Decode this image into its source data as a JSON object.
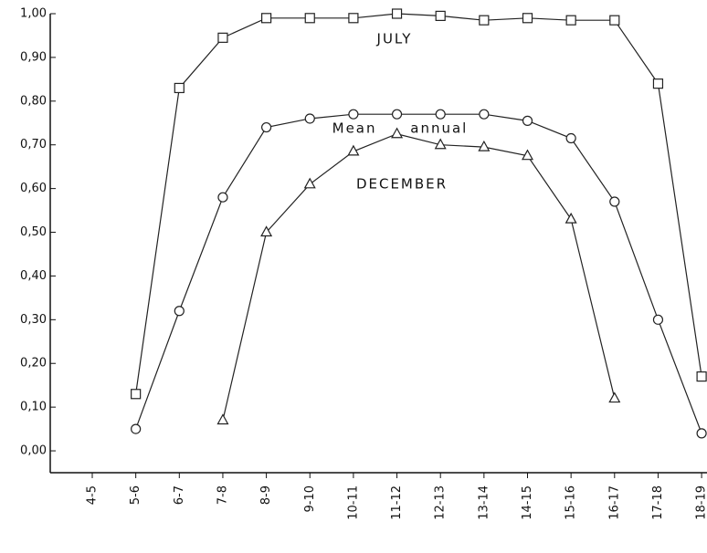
{
  "chart_data": {
    "type": "line",
    "categories": [
      "4-5",
      "5-6",
      "6-7",
      "7-8",
      "8-9",
      "9-10",
      "10-11",
      "11-12",
      "12-13",
      "13-14",
      "14-15",
      "15-16",
      "16-17",
      "17-18",
      "18-19"
    ],
    "series": [
      {
        "name": "JULY",
        "color": "#222",
        "marker": "square",
        "values": [
          null,
          0.13,
          0.83,
          0.945,
          0.99,
          0.99,
          0.99,
          1.0,
          0.995,
          0.985,
          0.99,
          0.985,
          0.985,
          0.84,
          0.17
        ]
      },
      {
        "name": "Mean annual",
        "color": "#222",
        "marker": "circle",
        "values": [
          null,
          0.05,
          0.32,
          0.58,
          0.74,
          0.76,
          0.77,
          0.77,
          0.77,
          0.77,
          0.755,
          0.715,
          0.57,
          0.3,
          0.04
        ]
      },
      {
        "name": "DECEMBER",
        "color": "#222",
        "marker": "triangle",
        "values": [
          null,
          null,
          null,
          0.07,
          0.5,
          0.61,
          0.685,
          0.725,
          0.7,
          0.695,
          0.675,
          0.53,
          0.12,
          null,
          null
        ]
      }
    ],
    "ylim": [
      -0.05,
      1.0
    ],
    "yticks": [
      {
        "value": 0,
        "label": "0,00"
      },
      {
        "value": 0.1,
        "label": "0,10"
      },
      {
        "value": 0.2,
        "label": "0,20"
      },
      {
        "value": 0.3,
        "label": "0,30"
      },
      {
        "value": 0.4,
        "label": "0,40"
      },
      {
        "value": 0.5,
        "label": "0,50"
      },
      {
        "value": 0.6,
        "label": "0,60"
      },
      {
        "value": 0.7,
        "label": "0,70"
      },
      {
        "value": 0.8,
        "label": "0,80"
      },
      {
        "value": 0.9,
        "label": "0,90"
      },
      {
        "value": 1.0,
        "label": "1,00"
      }
    ],
    "grid": false
  }
}
